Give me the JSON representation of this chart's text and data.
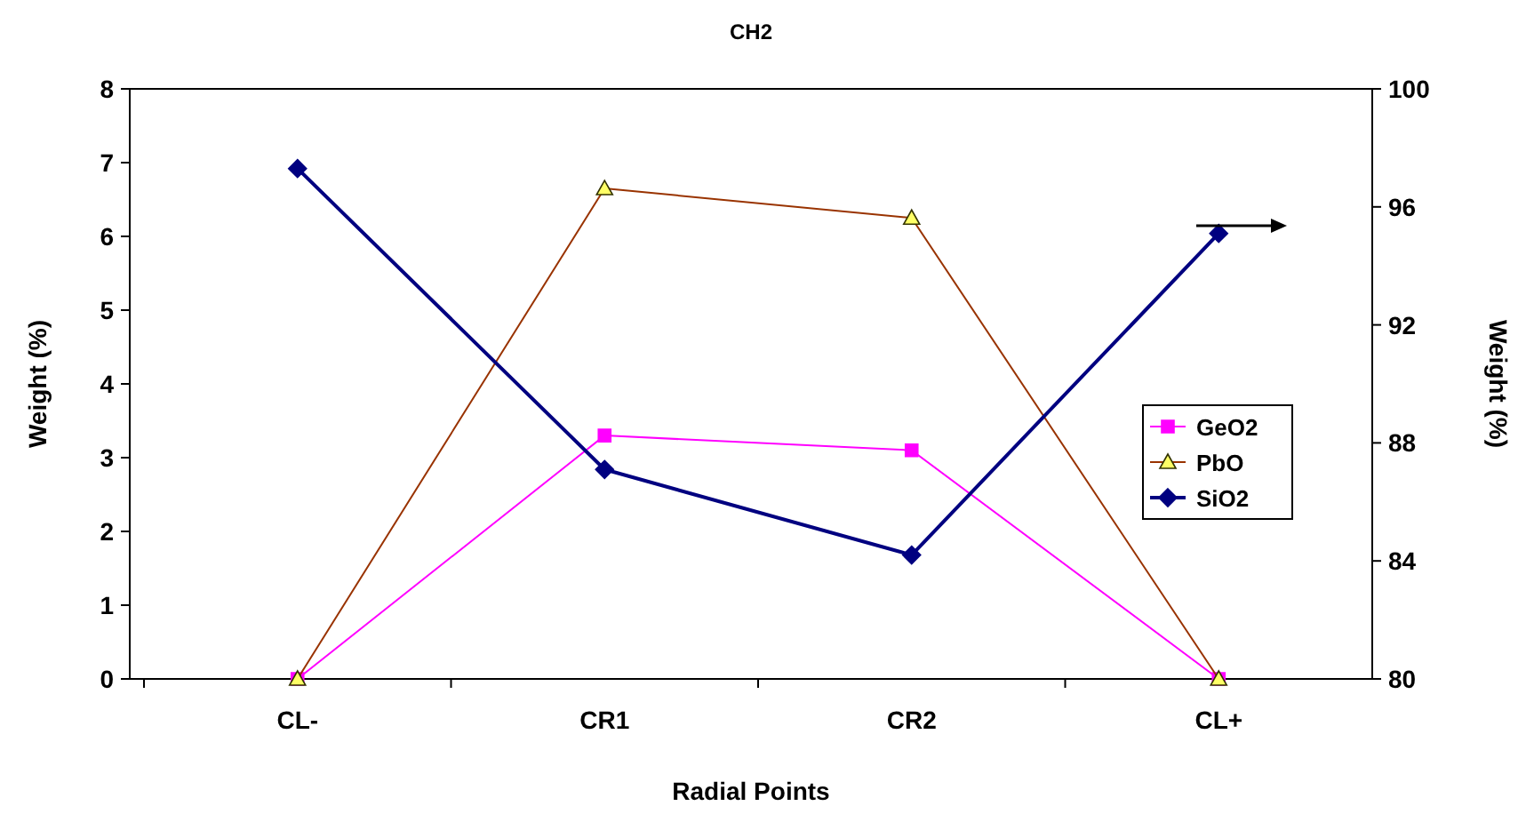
{
  "chart_data": {
    "type": "line",
    "title": "CH2",
    "xlabel": "Radial Points",
    "ylabel": "Weight (%)",
    "y2label": "Weight (%)",
    "categories": [
      "CL-",
      "CR1",
      "CR2",
      "CL+"
    ],
    "series": [
      {
        "name": "GeO2",
        "color": "#ff00ff",
        "values": [
          0,
          3.3,
          3.1,
          0
        ],
        "marker": "square"
      },
      {
        "name": "PbO",
        "color": "#993300",
        "values": [
          0,
          6.65,
          6.25,
          0
        ],
        "marker": "triangle"
      },
      {
        "name": "SiO2",
        "color": "#000080",
        "values": [
          97.3,
          87.1,
          84.2,
          95.1
        ],
        "marker": "diamond",
        "axis": "y2"
      }
    ],
    "ylim": [
      0,
      8
    ],
    "yticks": [
      0,
      1,
      2,
      3,
      4,
      5,
      6,
      7,
      8
    ],
    "y2lim": [
      80,
      100
    ],
    "y2ticks": [
      80,
      84,
      88,
      92,
      96,
      100
    ],
    "grid": false,
    "legend": "right"
  }
}
